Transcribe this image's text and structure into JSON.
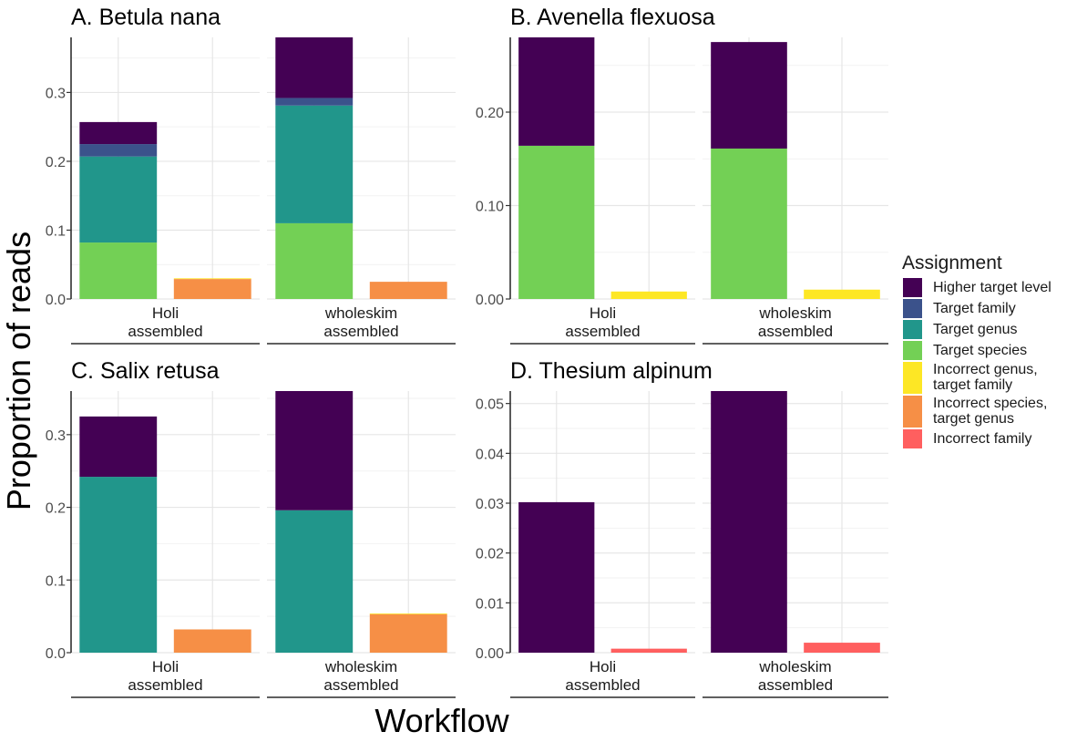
{
  "chart_data": {
    "type": "bar",
    "stacked": true,
    "ylabel": "Proportion of reads",
    "xlabel": "Workflow",
    "legend": {
      "title": "Assignment",
      "placement": "right",
      "items": [
        {
          "label": "Higher target level",
          "color": "#440154"
        },
        {
          "label": "Target family",
          "color": "#3B528B"
        },
        {
          "label": "Target genus",
          "color": "#21968B"
        },
        {
          "label": "Target species",
          "color": "#73D055"
        },
        {
          "label": "Incorrect genus,\ntarget family",
          "color": "#FDE725"
        },
        {
          "label": "Incorrect species,\ntarget genus",
          "color": "#F68F46"
        },
        {
          "label": "Incorrect family",
          "color": "#FF5F5F"
        }
      ]
    },
    "panels": [
      {
        "title": "A. Betula nana",
        "ylim": [
          0,
          0.38
        ],
        "yticks": [
          "0.0",
          "0.1",
          "0.2",
          "0.3"
        ],
        "groups": [
          {
            "label": "Holi\nassembled",
            "correct": [
              {
                "category": "Target species",
                "value": 0.082
              },
              {
                "category": "Target genus",
                "value": 0.125
              },
              {
                "category": "Target family",
                "value": 0.018
              },
              {
                "category": "Higher target level",
                "value": 0.032
              }
            ],
            "incorrect": [
              {
                "category": "Incorrect species, target genus",
                "value": 0.029
              },
              {
                "category": "Incorrect genus, target family",
                "value": 0.001
              }
            ]
          },
          {
            "label": "wholeskim\nassembled",
            "correct": [
              {
                "category": "Target species",
                "value": 0.11
              },
              {
                "category": "Target genus",
                "value": 0.171
              },
              {
                "category": "Target family",
                "value": 0.011
              },
              {
                "category": "Higher target level",
                "value": 0.088
              }
            ],
            "incorrect": [
              {
                "category": "Incorrect species, target genus",
                "value": 0.025
              }
            ]
          }
        ]
      },
      {
        "title": "B. Avenella flexuosa",
        "ylim": [
          0,
          0.28
        ],
        "yticks": [
          "0.00",
          "0.10",
          "0.20"
        ],
        "groups": [
          {
            "label": "Holi\nassembled",
            "correct": [
              {
                "category": "Target species",
                "value": 0.164
              },
              {
                "category": "Higher target level",
                "value": 0.116
              }
            ],
            "incorrect": [
              {
                "category": "Incorrect genus, target family",
                "value": 0.008
              }
            ]
          },
          {
            "label": "wholeskim\nassembled",
            "correct": [
              {
                "category": "Target species",
                "value": 0.161
              },
              {
                "category": "Higher target level",
                "value": 0.114
              }
            ],
            "incorrect": [
              {
                "category": "Incorrect genus, target family",
                "value": 0.01
              }
            ]
          }
        ]
      },
      {
        "title": "C. Salix retusa",
        "ylim": [
          0,
          0.36
        ],
        "yticks": [
          "0.0",
          "0.1",
          "0.2",
          "0.3"
        ],
        "groups": [
          {
            "label": "Holi\nassembled",
            "correct": [
              {
                "category": "Target genus",
                "value": 0.242
              },
              {
                "category": "Higher target level",
                "value": 0.083
              }
            ],
            "incorrect": [
              {
                "category": "Incorrect species, target genus",
                "value": 0.032
              }
            ]
          },
          {
            "label": "wholeskim\nassembled",
            "correct": [
              {
                "category": "Target genus",
                "value": 0.196
              },
              {
                "category": "Higher target level",
                "value": 0.164
              }
            ],
            "incorrect": [
              {
                "category": "Incorrect species, target genus",
                "value": 0.053
              },
              {
                "category": "Incorrect genus, target family",
                "value": 0.001
              }
            ]
          }
        ]
      },
      {
        "title": "D. Thesium alpinum",
        "ylim": [
          0,
          0.0525
        ],
        "yticks": [
          "0.00",
          "0.01",
          "0.02",
          "0.03",
          "0.04",
          "0.05"
        ],
        "groups": [
          {
            "label": "Holi\nassembled",
            "correct": [
              {
                "category": "Higher target level",
                "value": 0.0302
              }
            ],
            "incorrect": [
              {
                "category": "Incorrect family",
                "value": 0.0008
              }
            ]
          },
          {
            "label": "wholeskim\nassembled",
            "correct": [
              {
                "category": "Higher target level",
                "value": 0.0525
              }
            ],
            "incorrect": [
              {
                "category": "Incorrect family",
                "value": 0.002
              }
            ]
          }
        ]
      }
    ]
  }
}
